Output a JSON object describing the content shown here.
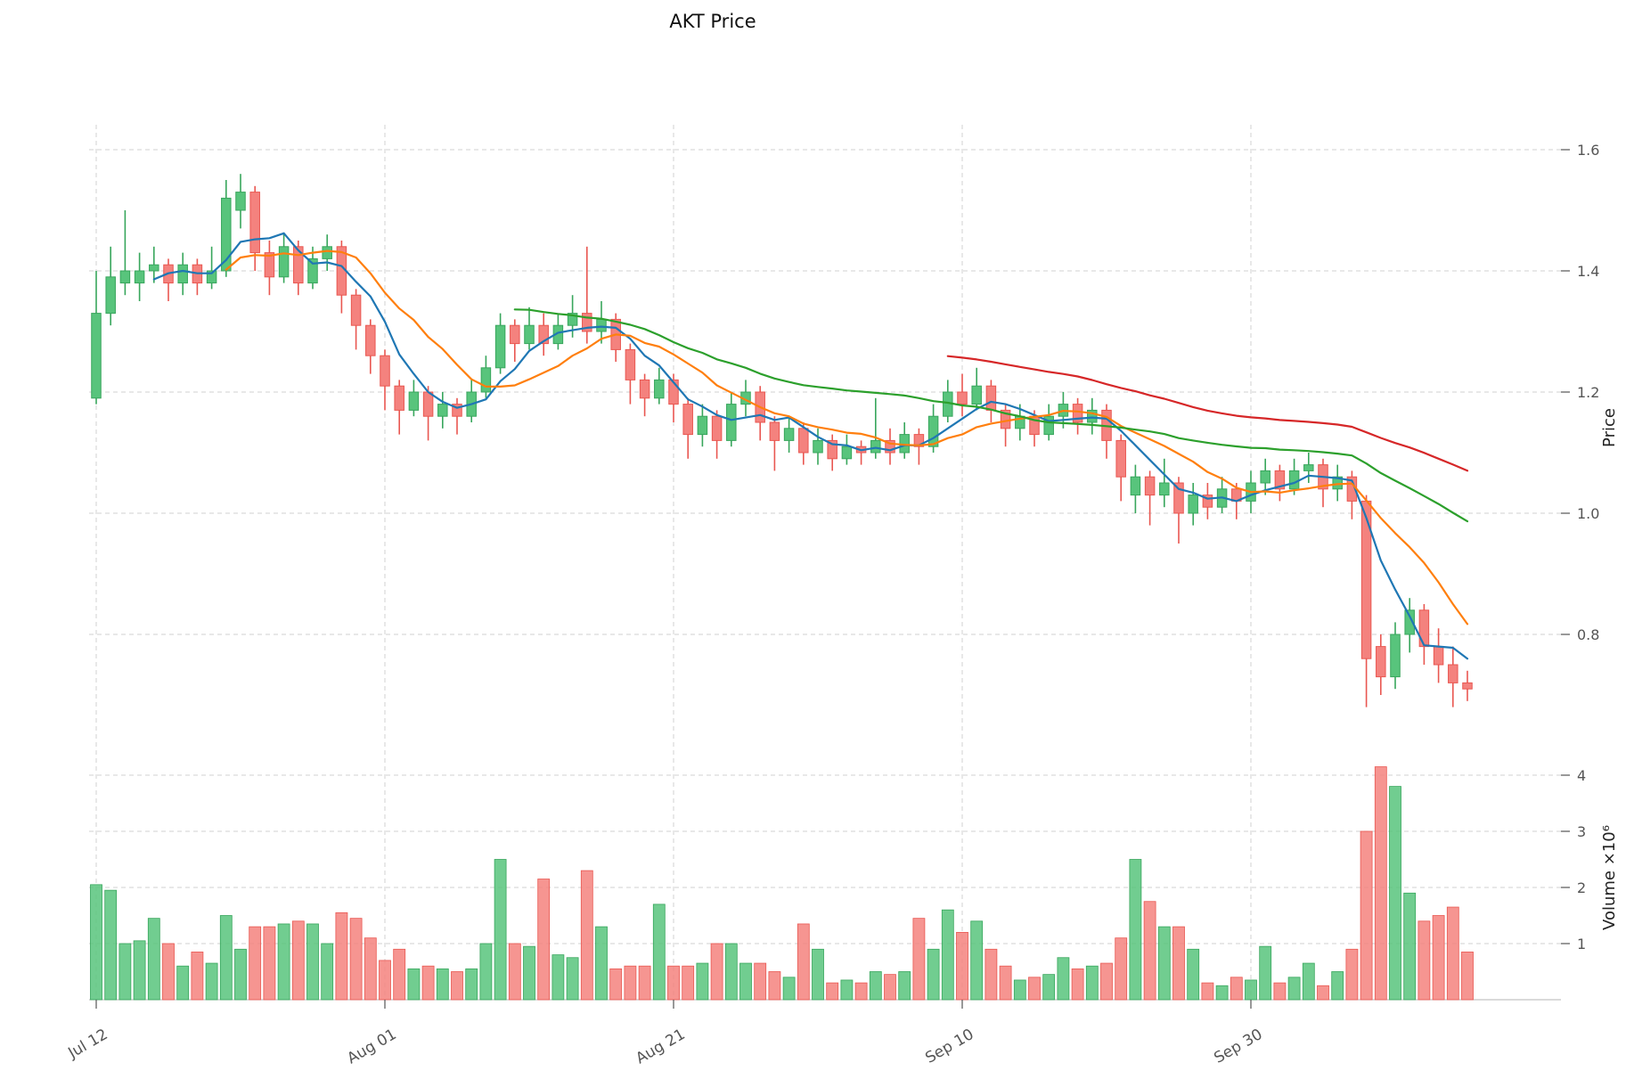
{
  "chart_data": {
    "type": "candlestick",
    "title": "AKT Price",
    "ylabel": "Price",
    "ylabel2": "Volume ×10⁶",
    "grid": true,
    "price_ticks": [
      1.6,
      1.4,
      1.2,
      1.0,
      0.8
    ],
    "volume_ticks": [
      4,
      3,
      2,
      1
    ],
    "x_ticks": [
      {
        "label": "Jul 12",
        "index": 0
      },
      {
        "label": "Aug 01",
        "index": 20
      },
      {
        "label": "Aug 21",
        "index": 40
      },
      {
        "label": "Sep 10",
        "index": 60
      },
      {
        "label": "Sep 30",
        "index": 80
      }
    ],
    "ma_windows": [
      5,
      10,
      30,
      60
    ],
    "ma_colors": [
      "#1f77b4",
      "#ff7f0e",
      "#2ca02c",
      "#d62728"
    ],
    "colors": {
      "up": "#58c47c",
      "up_edge": "#38a65c",
      "down": "#f4827e",
      "down_edge": "#e95751",
      "grid": "#d0d0d0",
      "tick_text": "#555555",
      "spine": "#b5b5b5"
    },
    "ohlcv_columns": [
      "date",
      "open",
      "high",
      "low",
      "close",
      "volume_millions"
    ],
    "ohlcv": [
      [
        "Jul 12",
        1.19,
        1.4,
        1.18,
        1.33,
        2.05
      ],
      [
        "Jul 13",
        1.33,
        1.44,
        1.31,
        1.39,
        1.95
      ],
      [
        "Jul 14",
        1.38,
        1.5,
        1.36,
        1.4,
        1.0
      ],
      [
        "Jul 15",
        1.38,
        1.43,
        1.35,
        1.4,
        1.05
      ],
      [
        "Jul 16",
        1.4,
        1.44,
        1.38,
        1.41,
        1.45
      ],
      [
        "Jul 17",
        1.41,
        1.42,
        1.35,
        1.38,
        1.0
      ],
      [
        "Jul 18",
        1.38,
        1.43,
        1.36,
        1.41,
        0.6
      ],
      [
        "Jul 19",
        1.41,
        1.42,
        1.36,
        1.38,
        0.85
      ],
      [
        "Jul 20",
        1.38,
        1.44,
        1.37,
        1.4,
        0.65
      ],
      [
        "Jul 21",
        1.4,
        1.55,
        1.39,
        1.52,
        1.5
      ],
      [
        "Jul 22",
        1.5,
        1.56,
        1.47,
        1.53,
        0.9
      ],
      [
        "Jul 23",
        1.53,
        1.54,
        1.4,
        1.43,
        1.3
      ],
      [
        "Jul 24",
        1.43,
        1.45,
        1.36,
        1.39,
        1.3
      ],
      [
        "Jul 25",
        1.39,
        1.46,
        1.38,
        1.44,
        1.35
      ],
      [
        "Jul 26",
        1.44,
        1.45,
        1.36,
        1.38,
        1.4
      ],
      [
        "Jul 27",
        1.38,
        1.44,
        1.37,
        1.42,
        1.35
      ],
      [
        "Jul 28",
        1.42,
        1.46,
        1.4,
        1.44,
        1.0
      ],
      [
        "Jul 29",
        1.44,
        1.45,
        1.33,
        1.36,
        1.55
      ],
      [
        "Jul 30",
        1.36,
        1.37,
        1.27,
        1.31,
        1.45
      ],
      [
        "Jul 31",
        1.31,
        1.32,
        1.23,
        1.26,
        1.1
      ],
      [
        "Aug 01",
        1.26,
        1.27,
        1.17,
        1.21,
        0.7
      ],
      [
        "Aug 02",
        1.21,
        1.22,
        1.13,
        1.17,
        0.9
      ],
      [
        "Aug 03",
        1.17,
        1.22,
        1.16,
        1.2,
        0.55
      ],
      [
        "Aug 04",
        1.2,
        1.21,
        1.12,
        1.16,
        0.6
      ],
      [
        "Aug 05",
        1.16,
        1.2,
        1.14,
        1.18,
        0.55
      ],
      [
        "Aug 06",
        1.18,
        1.19,
        1.13,
        1.16,
        0.5
      ],
      [
        "Aug 07",
        1.16,
        1.22,
        1.15,
        1.2,
        0.55
      ],
      [
        "Aug 08",
        1.2,
        1.26,
        1.19,
        1.24,
        1.0
      ],
      [
        "Aug 09",
        1.24,
        1.33,
        1.23,
        1.31,
        2.5
      ],
      [
        "Aug 10",
        1.31,
        1.32,
        1.25,
        1.28,
        1.0
      ],
      [
        "Aug 11",
        1.28,
        1.34,
        1.27,
        1.31,
        0.95
      ],
      [
        "Aug 12",
        1.31,
        1.33,
        1.26,
        1.28,
        2.15
      ],
      [
        "Aug 13",
        1.28,
        1.33,
        1.27,
        1.31,
        0.8
      ],
      [
        "Aug 14",
        1.31,
        1.36,
        1.29,
        1.33,
        0.75
      ],
      [
        "Aug 15",
        1.33,
        1.44,
        1.28,
        1.3,
        2.3
      ],
      [
        "Aug 16",
        1.3,
        1.35,
        1.28,
        1.32,
        1.3
      ],
      [
        "Aug 17",
        1.32,
        1.33,
        1.25,
        1.27,
        0.55
      ],
      [
        "Aug 18",
        1.27,
        1.28,
        1.18,
        1.22,
        0.6
      ],
      [
        "Aug 19",
        1.22,
        1.23,
        1.16,
        1.19,
        0.6
      ],
      [
        "Aug 20",
        1.19,
        1.24,
        1.18,
        1.22,
        1.7
      ],
      [
        "Aug 21",
        1.22,
        1.23,
        1.15,
        1.18,
        0.6
      ],
      [
        "Aug 22",
        1.18,
        1.19,
        1.09,
        1.13,
        0.6
      ],
      [
        "Aug 23",
        1.13,
        1.18,
        1.11,
        1.16,
        0.65
      ],
      [
        "Aug 24",
        1.16,
        1.17,
        1.09,
        1.12,
        1.0
      ],
      [
        "Aug 25",
        1.12,
        1.2,
        1.11,
        1.18,
        1.0
      ],
      [
        "Aug 26",
        1.18,
        1.22,
        1.16,
        1.2,
        0.65
      ],
      [
        "Aug 27",
        1.2,
        1.21,
        1.12,
        1.15,
        0.65
      ],
      [
        "Aug 28",
        1.15,
        1.16,
        1.07,
        1.12,
        0.5
      ],
      [
        "Aug 29",
        1.12,
        1.16,
        1.1,
        1.14,
        0.4
      ],
      [
        "Aug 30",
        1.14,
        1.15,
        1.08,
        1.1,
        1.35
      ],
      [
        "Aug 31",
        1.1,
        1.14,
        1.08,
        1.12,
        0.9
      ],
      [
        "Sep 01",
        1.12,
        1.13,
        1.07,
        1.09,
        0.3
      ],
      [
        "Sep 02",
        1.09,
        1.13,
        1.08,
        1.11,
        0.35
      ],
      [
        "Sep 03",
        1.11,
        1.12,
        1.08,
        1.1,
        0.3
      ],
      [
        "Sep 04",
        1.1,
        1.19,
        1.09,
        1.12,
        0.5
      ],
      [
        "Sep 05",
        1.12,
        1.14,
        1.08,
        1.1,
        0.45
      ],
      [
        "Sep 06",
        1.1,
        1.15,
        1.09,
        1.13,
        0.5
      ],
      [
        "Sep 07",
        1.13,
        1.14,
        1.08,
        1.11,
        1.45
      ],
      [
        "Sep 08",
        1.11,
        1.18,
        1.1,
        1.16,
        0.9
      ],
      [
        "Sep 09",
        1.16,
        1.22,
        1.15,
        1.2,
        1.6
      ],
      [
        "Sep 10",
        1.2,
        1.23,
        1.16,
        1.18,
        1.2
      ],
      [
        "Sep 11",
        1.18,
        1.24,
        1.17,
        1.21,
        1.4
      ],
      [
        "Sep 12",
        1.21,
        1.22,
        1.15,
        1.17,
        0.9
      ],
      [
        "Sep 13",
        1.17,
        1.18,
        1.11,
        1.14,
        0.6
      ],
      [
        "Sep 14",
        1.14,
        1.18,
        1.12,
        1.16,
        0.35
      ],
      [
        "Sep 15",
        1.16,
        1.17,
        1.11,
        1.13,
        0.4
      ],
      [
        "Sep 16",
        1.13,
        1.18,
        1.12,
        1.16,
        0.45
      ],
      [
        "Sep 17",
        1.16,
        1.2,
        1.14,
        1.18,
        0.75
      ],
      [
        "Sep 18",
        1.18,
        1.19,
        1.13,
        1.15,
        0.55
      ],
      [
        "Sep 19",
        1.15,
        1.19,
        1.13,
        1.17,
        0.6
      ],
      [
        "Sep 20",
        1.17,
        1.18,
        1.09,
        1.12,
        0.65
      ],
      [
        "Sep 21",
        1.12,
        1.13,
        1.02,
        1.06,
        1.1
      ],
      [
        "Sep 22",
        1.03,
        1.08,
        1.0,
        1.06,
        2.5
      ],
      [
        "Sep 23",
        1.06,
        1.07,
        0.98,
        1.03,
        1.75
      ],
      [
        "Sep 24",
        1.03,
        1.09,
        1.01,
        1.05,
        1.3
      ],
      [
        "Sep 25",
        1.05,
        1.06,
        0.95,
        1.0,
        1.3
      ],
      [
        "Sep 26",
        1.0,
        1.05,
        0.98,
        1.03,
        0.9
      ],
      [
        "Sep 27",
        1.03,
        1.05,
        0.99,
        1.01,
        0.3
      ],
      [
        "Sep 28",
        1.01,
        1.06,
        1.0,
        1.04,
        0.25
      ],
      [
        "Sep 29",
        1.04,
        1.05,
        0.99,
        1.02,
        0.4
      ],
      [
        "Sep 30",
        1.02,
        1.07,
        1.0,
        1.05,
        0.35
      ],
      [
        "Oct 01",
        1.05,
        1.09,
        1.03,
        1.07,
        0.95
      ],
      [
        "Oct 02",
        1.07,
        1.08,
        1.02,
        1.04,
        0.3
      ],
      [
        "Oct 03",
        1.04,
        1.09,
        1.03,
        1.07,
        0.4
      ],
      [
        "Oct 04",
        1.07,
        1.1,
        1.05,
        1.08,
        0.65
      ],
      [
        "Oct 05",
        1.08,
        1.09,
        1.01,
        1.04,
        0.25
      ],
      [
        "Oct 06",
        1.04,
        1.08,
        1.02,
        1.06,
        0.5
      ],
      [
        "Oct 07",
        1.06,
        1.07,
        0.99,
        1.02,
        0.9
      ],
      [
        "Oct 08",
        1.02,
        1.03,
        0.68,
        0.76,
        3.0
      ],
      [
        "Oct 09",
        0.78,
        0.8,
        0.7,
        0.73,
        4.15
      ],
      [
        "Oct 10",
        0.73,
        0.82,
        0.71,
        0.8,
        3.8
      ],
      [
        "Oct 11",
        0.8,
        0.86,
        0.77,
        0.84,
        1.9
      ],
      [
        "Oct 12",
        0.84,
        0.85,
        0.75,
        0.78,
        1.4
      ],
      [
        "Oct 13",
        0.78,
        0.81,
        0.72,
        0.75,
        1.5
      ],
      [
        "Oct 14",
        0.75,
        0.78,
        0.68,
        0.72,
        1.65
      ],
      [
        "Oct 15",
        0.72,
        0.74,
        0.69,
        0.71,
        0.85
      ]
    ]
  }
}
